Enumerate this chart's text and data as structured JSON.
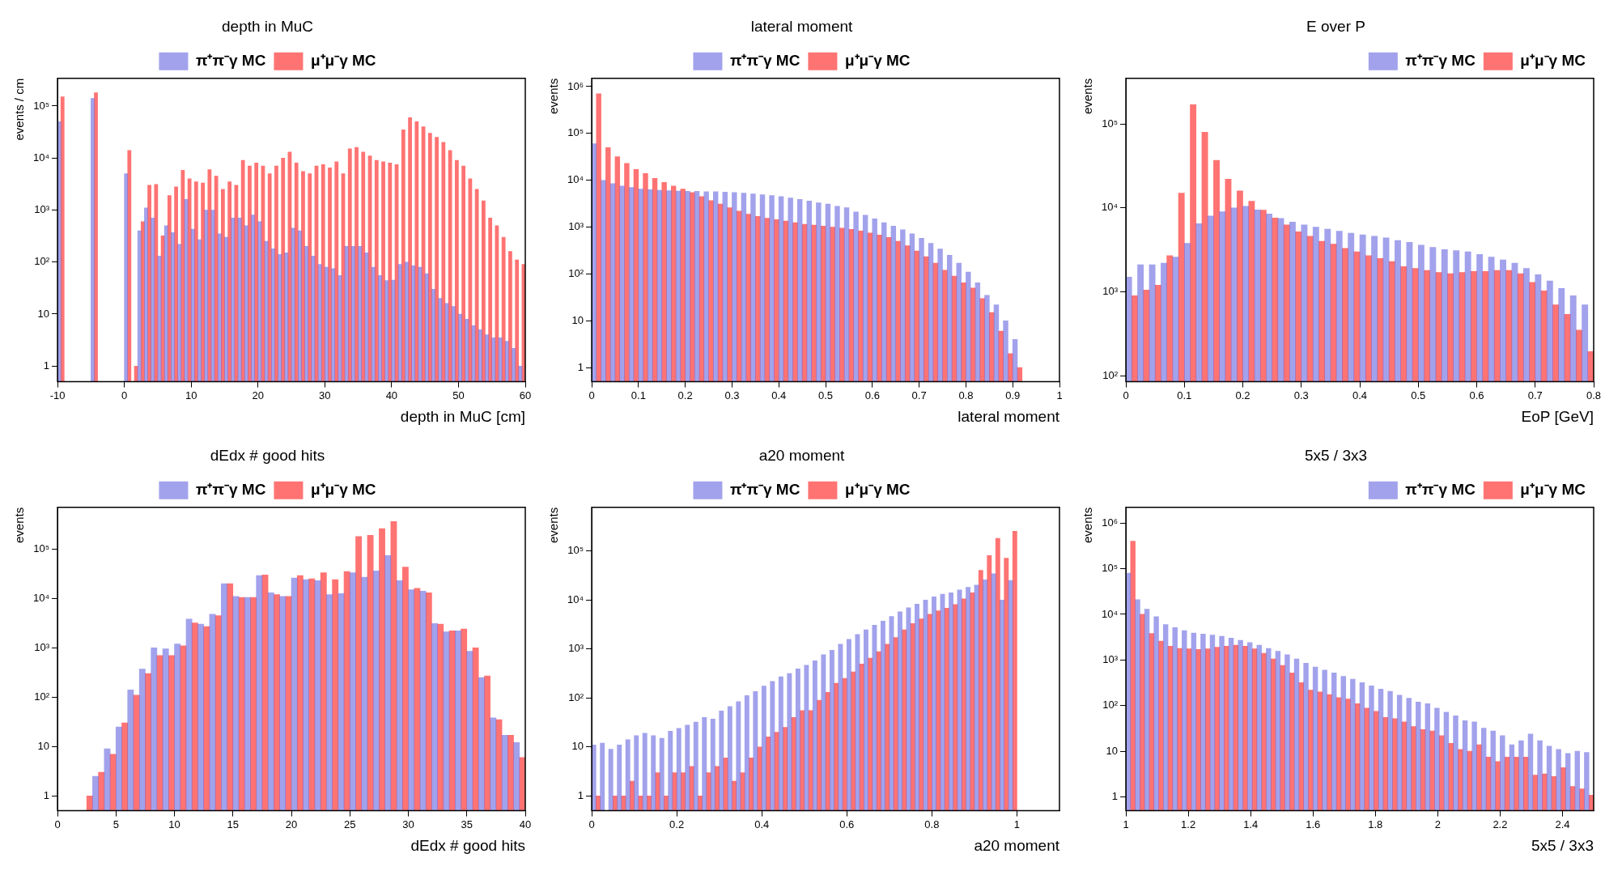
{
  "chart_data": [
    {
      "type": "histogram",
      "title": "depth in MuC",
      "xlabel": "depth in MuC [cm]",
      "ylabel": "events / cm",
      "log": true,
      "legend": "top",
      "bins": [
        -10,
        -9,
        -8,
        -7,
        -6,
        -5,
        -4,
        -3,
        -2,
        -1,
        0,
        1,
        2,
        3,
        4,
        5,
        6,
        7,
        8,
        9,
        10,
        11,
        12,
        13,
        14,
        15,
        16,
        17,
        18,
        19,
        20,
        21,
        22,
        23,
        24,
        25,
        26,
        27,
        28,
        29,
        30,
        31,
        32,
        33,
        34,
        35,
        36,
        37,
        38,
        39,
        40,
        41,
        42,
        43,
        44,
        45,
        46,
        47,
        48,
        49,
        50,
        51,
        52,
        53,
        54,
        55,
        56,
        57,
        58,
        59,
        60
      ],
      "series": [
        {
          "name": "π⁺π⁻γ MC",
          "color": "#5555dd",
          "values": [
            50000,
            null,
            null,
            null,
            null,
            140000,
            null,
            null,
            null,
            null,
            5000,
            null,
            400,
            1100,
            700,
            130,
            500,
            370,
            220,
            1600,
            430,
            270,
            1000,
            1000,
            350,
            300,
            700,
            700,
            500,
            800,
            600,
            250,
            180,
            140,
            150,
            450,
            400,
            200,
            130,
            90,
            80,
            75,
            55,
            200,
            200,
            200,
            150,
            80,
            55,
            44,
            45,
            90,
            100,
            85,
            80,
            60,
            30,
            20,
            16,
            14,
            10,
            8,
            6,
            5,
            4,
            3.5,
            3.5,
            3,
            2.2,
            1
          ]
        },
        {
          "name": "μ⁺μ⁻γ MC",
          "color": "#ff0000",
          "values": [
            150000,
            null,
            null,
            null,
            null,
            180000,
            null,
            null,
            null,
            null,
            14000,
            1,
            600,
            3000,
            3100,
            320,
            1900,
            2800,
            5800,
            4000,
            3500,
            3300,
            6000,
            4500,
            2500,
            3500,
            3000,
            9000,
            7000,
            8000,
            7000,
            5000,
            7000,
            10000,
            13000,
            8000,
            5500,
            5000,
            7000,
            7500,
            6500,
            8500,
            5000,
            15000,
            16000,
            13000,
            11000,
            9000,
            8500,
            8000,
            7500,
            35000,
            60000,
            50000,
            40000,
            30000,
            25000,
            20000,
            14000,
            9000,
            7000,
            4000,
            2500,
            1500,
            700,
            500,
            300,
            160,
            110,
            90
          ]
        }
      ],
      "xlim": [
        -10,
        60
      ],
      "xticks": [
        -10,
        0,
        10,
        20,
        30,
        40,
        50,
        60
      ],
      "ylim": [
        0.5,
        340000
      ],
      "yticks": [
        {
          "value": 1,
          "label": "1"
        },
        {
          "value": 10,
          "label": "10"
        },
        {
          "value": 100,
          "label": "10²"
        },
        {
          "value": 1000,
          "label": "10³"
        },
        {
          "value": 10000,
          "label": "10⁴"
        },
        {
          "value": 100000,
          "label": "10⁵"
        }
      ]
    },
    {
      "type": "histogram",
      "title": "lateral moment",
      "xlabel": "lateral moment",
      "ylabel": "events",
      "log": true,
      "legend": "top",
      "bins": [
        0,
        0.02,
        0.04,
        0.06,
        0.08,
        0.1,
        0.12,
        0.14,
        0.16,
        0.18,
        0.2,
        0.22,
        0.24,
        0.26,
        0.28,
        0.3,
        0.32,
        0.34,
        0.36,
        0.38,
        0.4,
        0.42,
        0.44,
        0.46,
        0.48,
        0.5,
        0.52,
        0.54,
        0.56,
        0.58,
        0.6,
        0.62,
        0.64,
        0.66,
        0.68,
        0.7,
        0.72,
        0.74,
        0.76,
        0.78,
        0.8,
        0.82,
        0.84,
        0.86,
        0.88,
        0.9,
        0.92,
        0.94,
        0.96,
        0.98,
        1
      ],
      "series": [
        {
          "name": "π⁺π⁻γ MC",
          "color": "#5555dd",
          "values": [
            60000,
            10000,
            8500,
            7500,
            7000,
            6500,
            6300,
            6100,
            6000,
            5900,
            5800,
            5800,
            5700,
            5700,
            5600,
            5500,
            5300,
            5100,
            4900,
            4700,
            4500,
            4200,
            3900,
            3600,
            3300,
            3100,
            2800,
            2600,
            2100,
            1800,
            1500,
            1250,
            1050,
            880,
            720,
            580,
            450,
            340,
            250,
            170,
            110,
            65,
            35,
            22,
            10,
            4,
            null,
            null,
            null,
            null
          ]
        },
        {
          "name": "μ⁺μ⁻γ MC",
          "color": "#ff0000",
          "values": [
            700000,
            50000,
            32000,
            23000,
            17000,
            14000,
            11000,
            9000,
            7500,
            6500,
            5500,
            4500,
            3700,
            3100,
            2600,
            2200,
            1900,
            1700,
            1550,
            1450,
            1350,
            1250,
            1150,
            1100,
            1050,
            1000,
            950,
            900,
            830,
            750,
            680,
            600,
            500,
            400,
            310,
            235,
            170,
            120,
            90,
            65,
            50,
            30,
            15,
            6,
            2,
            1,
            null,
            null,
            null,
            null
          ]
        }
      ],
      "xlim": [
        0,
        1
      ],
      "xticks": [
        0,
        0.1,
        0.2,
        0.3,
        0.4,
        0.5,
        0.6,
        0.7,
        0.8,
        0.9,
        1
      ],
      "ylim": [
        0.5,
        1500000
      ],
      "yticks": [
        {
          "value": 1,
          "label": "1"
        },
        {
          "value": 10,
          "label": "10"
        },
        {
          "value": 100,
          "label": "10²"
        },
        {
          "value": 1000,
          "label": "10³"
        },
        {
          "value": 10000,
          "label": "10⁴"
        },
        {
          "value": 100000,
          "label": "10⁵"
        },
        {
          "value": 1000000,
          "label": "10⁶"
        }
      ]
    },
    {
      "type": "histogram",
      "title": "E over P",
      "xlabel": "EoP [GeV]",
      "ylabel": "events",
      "log": true,
      "legend": "top right",
      "bins": [
        0,
        0.02,
        0.04,
        0.06,
        0.08,
        0.1,
        0.12,
        0.14,
        0.16,
        0.18,
        0.2,
        0.22,
        0.24,
        0.26,
        0.28,
        0.3,
        0.32,
        0.34,
        0.36,
        0.38,
        0.4,
        0.42,
        0.44,
        0.46,
        0.48,
        0.5,
        0.52,
        0.54,
        0.56,
        0.58,
        0.6,
        0.62,
        0.64,
        0.66,
        0.68,
        0.7,
        0.72,
        0.74,
        0.76,
        0.78,
        0.8
      ],
      "series": [
        {
          "name": "π⁺π⁻γ MC",
          "color": "#5555dd",
          "values": [
            1500,
            2100,
            2100,
            2200,
            2600,
            3800,
            6500,
            8000,
            9000,
            10000,
            10500,
            9500,
            8500,
            7500,
            6800,
            6300,
            5900,
            5600,
            5300,
            5000,
            4800,
            4600,
            4400,
            4100,
            3900,
            3600,
            3400,
            3200,
            3100,
            3000,
            2800,
            2600,
            2400,
            2200,
            1900,
            1600,
            1350,
            1100,
            900,
            700
          ]
        },
        {
          "name": "μ⁺μ⁻γ MC",
          "color": "#ff0000",
          "values": [
            900,
            1050,
            1200,
            2700,
            15000,
            170000,
            80000,
            37000,
            22000,
            16000,
            12000,
            9400,
            7600,
            6300,
            5200,
            4600,
            4000,
            3700,
            3300,
            3000,
            2700,
            2500,
            2300,
            2000,
            1900,
            1800,
            1700,
            1650,
            1700,
            1750,
            1750,
            1800,
            1800,
            1650,
            1300,
            1030,
            700,
            540,
            350,
            195
          ]
        }
      ],
      "xlim": [
        0,
        0.8
      ],
      "xticks": [
        0,
        0.1,
        0.2,
        0.3,
        0.4,
        0.5,
        0.6,
        0.7,
        0.8
      ],
      "ylim": [
        85,
        350000
      ],
      "yticks": [
        {
          "value": 100,
          "label": "10²"
        },
        {
          "value": 1000,
          "label": "10³"
        },
        {
          "value": 10000,
          "label": "10⁴"
        },
        {
          "value": 100000,
          "label": "10⁵"
        }
      ]
    },
    {
      "type": "histogram",
      "title": "dEdx # good hits",
      "xlabel": "dEdx # good hits",
      "ylabel": "events",
      "log": true,
      "legend": "top",
      "bins": [
        0,
        1,
        2,
        3,
        4,
        5,
        6,
        7,
        8,
        9,
        10,
        11,
        12,
        13,
        14,
        15,
        16,
        17,
        18,
        19,
        20,
        21,
        22,
        23,
        24,
        25,
        26,
        27,
        28,
        29,
        30,
        31,
        32,
        33,
        34,
        35,
        36,
        37,
        38,
        39,
        40
      ],
      "series": [
        {
          "name": "π⁺π⁻γ MC",
          "color": "#5555dd",
          "values": [
            null,
            null,
            null,
            2.5,
            9,
            25,
            140,
            370,
            1000,
            950,
            1200,
            3800,
            3000,
            4800,
            20000,
            11000,
            10500,
            29000,
            13000,
            11000,
            26000,
            24000,
            23000,
            12000,
            12500,
            33000,
            27000,
            36000,
            74000,
            23000,
            15000,
            14000,
            3100,
            2100,
            2200,
            850,
            250,
            38,
            17,
            12
          ]
        },
        {
          "name": "μ⁺μ⁻γ MC",
          "color": "#ff0000",
          "values": [
            null,
            null,
            1,
            3,
            7,
            30,
            110,
            300,
            700,
            700,
            1100,
            3200,
            2700,
            4500,
            20000,
            10500,
            10500,
            30000,
            12000,
            11000,
            29000,
            25000,
            33000,
            24000,
            35000,
            180000,
            190000,
            260000,
            360000,
            43000,
            16000,
            13000,
            3000,
            2200,
            2400,
            1000,
            270,
            35,
            17,
            6
          ]
        }
      ],
      "xlim": [
        0,
        40
      ],
      "xticks": [
        0,
        5,
        10,
        15,
        20,
        25,
        30,
        35,
        40
      ],
      "ylim": [
        0.5,
        700000
      ],
      "yticks": [
        {
          "value": 1,
          "label": "1"
        },
        {
          "value": 10,
          "label": "10"
        },
        {
          "value": 100,
          "label": "10²"
        },
        {
          "value": 1000,
          "label": "10³"
        },
        {
          "value": 10000,
          "label": "10⁴"
        },
        {
          "value": 100000,
          "label": "10⁵"
        }
      ]
    },
    {
      "type": "histogram",
      "title": "a20 moment",
      "xlabel": "a20 moment",
      "ylabel": "events",
      "log": true,
      "legend": "top",
      "bins": [
        0,
        0.02,
        0.04,
        0.06,
        0.08,
        0.1,
        0.12,
        0.14,
        0.16,
        0.18,
        0.2,
        0.22,
        0.24,
        0.26,
        0.28,
        0.3,
        0.32,
        0.34,
        0.36,
        0.38,
        0.4,
        0.42,
        0.44,
        0.46,
        0.48,
        0.5,
        0.52,
        0.54,
        0.56,
        0.58,
        0.6,
        0.62,
        0.64,
        0.66,
        0.68,
        0.7,
        0.72,
        0.74,
        0.76,
        0.78,
        0.8,
        0.82,
        0.84,
        0.86,
        0.88,
        0.9,
        0.92,
        0.94,
        0.96,
        0.98,
        1,
        1.02,
        1.04,
        1.06,
        1.08,
        1.1
      ],
      "series": [
        {
          "name": "π⁺π⁻γ MC",
          "color": "#5555dd",
          "values": [
            11,
            12,
            9,
            11,
            14,
            17,
            19,
            17,
            15,
            21,
            24,
            28,
            32,
            40,
            37,
            54,
            67,
            84,
            112,
            135,
            175,
            218,
            270,
            315,
            390,
            465,
            570,
            760,
            940,
            1250,
            1570,
            1960,
            2450,
            3060,
            3700,
            4600,
            5700,
            6900,
            8200,
            9900,
            11500,
            13000,
            14000,
            16000,
            18000,
            20000,
            25500,
            34000,
            9900,
            25000,
            null,
            null,
            null,
            null,
            null
          ]
        },
        {
          "name": "μ⁺μ⁻γ MC",
          "color": "#ff0000",
          "values": [
            1,
            null,
            1,
            1,
            2,
            1,
            1,
            3,
            1,
            3,
            3,
            4,
            1,
            3,
            4,
            6,
            2,
            3,
            6,
            10,
            16,
            20,
            25,
            40,
            55,
            55,
            90,
            130,
            200,
            250,
            340,
            490,
            650,
            880,
            1250,
            1700,
            2450,
            3300,
            4100,
            5100,
            6000,
            6800,
            8000,
            10500,
            14000,
            40000,
            80000,
            180000,
            71000,
            250000,
            null,
            null,
            null,
            null,
            null
          ]
        }
      ],
      "xlim": [
        0,
        1.1
      ],
      "xticks": [
        0,
        0.2,
        0.4,
        0.6,
        0.8,
        1
      ],
      "ylim": [
        0.5,
        770000
      ],
      "yticks": [
        {
          "value": 1,
          "label": "1"
        },
        {
          "value": 10,
          "label": "10"
        },
        {
          "value": 100,
          "label": "10²"
        },
        {
          "value": 1000,
          "label": "10³"
        },
        {
          "value": 10000,
          "label": "10⁴"
        },
        {
          "value": 100000,
          "label": "10⁵"
        }
      ]
    },
    {
      "type": "histogram",
      "title": "5x5 / 3x3",
      "xlabel": "5x5 / 3x3",
      "ylabel": "events",
      "log": true,
      "legend": "top right",
      "bins": [
        1,
        1.03,
        1.06,
        1.09,
        1.12,
        1.15,
        1.18,
        1.21,
        1.24,
        1.27,
        1.3,
        1.33,
        1.36,
        1.39,
        1.42,
        1.45,
        1.48,
        1.51,
        1.54,
        1.57,
        1.6,
        1.63,
        1.66,
        1.69,
        1.72,
        1.75,
        1.78,
        1.81,
        1.84,
        1.87,
        1.9,
        1.93,
        1.96,
        1.99,
        2.02,
        2.05,
        2.08,
        2.11,
        2.14,
        2.17,
        2.2,
        2.23,
        2.26,
        2.29,
        2.32,
        2.35,
        2.38,
        2.41,
        2.44,
        2.47,
        2.5
      ],
      "series": [
        {
          "name": "π⁺π⁻γ MC",
          "color": "#5555dd",
          "values": [
            80000,
            21000,
            13000,
            8900,
            6000,
            5100,
            4400,
            3900,
            3700,
            3500,
            3300,
            3000,
            2700,
            2400,
            2100,
            1800,
            1550,
            1300,
            1050,
            850,
            700,
            600,
            520,
            440,
            380,
            320,
            270,
            230,
            205,
            170,
            145,
            120,
            110,
            88,
            72,
            60,
            47,
            44,
            32,
            28,
            22,
            14,
            17,
            24,
            17,
            13,
            11,
            9,
            10,
            9.5
          ]
        },
        {
          "name": "μ⁺μ⁻γ MC",
          "color": "#ff0000",
          "values": [
            400000,
            10000,
            3800,
            2600,
            2000,
            1800,
            1750,
            1700,
            1750,
            1900,
            2000,
            2100,
            2000,
            1750,
            1400,
            1050,
            760,
            520,
            320,
            220,
            200,
            175,
            150,
            140,
            110,
            88,
            75,
            55,
            52,
            44,
            35,
            30,
            28,
            22,
            15,
            11,
            10,
            14,
            7.5,
            6,
            7.5,
            7.5,
            7.5,
            3,
            3.2,
            2.8,
            4.4,
            1.7,
            1.5,
            1.1
          ]
        }
      ],
      "xlim": [
        1,
        2.5
      ],
      "xticks": [
        1,
        1.2,
        1.4,
        1.6,
        1.8,
        2,
        2.2,
        2.4
      ],
      "ylim": [
        0.5,
        2200000
      ],
      "yticks": [
        {
          "value": 1,
          "label": "1"
        },
        {
          "value": 10,
          "label": "10"
        },
        {
          "value": 100,
          "label": "10²"
        },
        {
          "value": 1000,
          "label": "10³"
        },
        {
          "value": 10000,
          "label": "10⁴"
        },
        {
          "value": 100000,
          "label": "10⁵"
        },
        {
          "value": 1000000,
          "label": "10⁶"
        }
      ]
    }
  ]
}
